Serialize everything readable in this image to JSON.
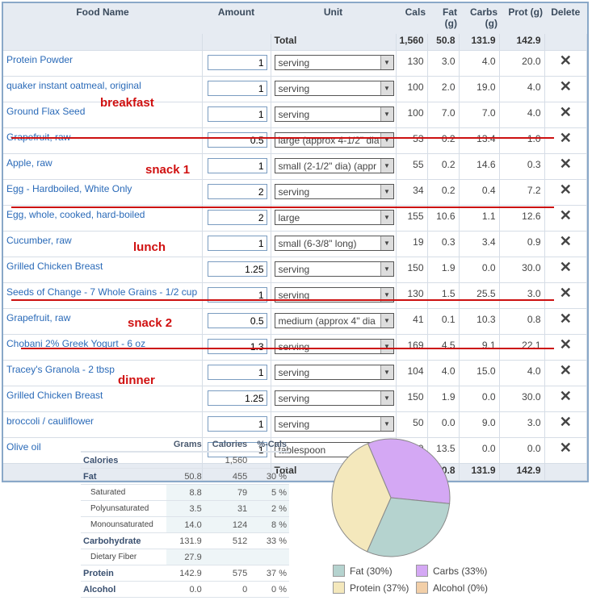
{
  "columns": [
    "Food Name",
    "Amount",
    "Unit",
    "Cals",
    "Fat (g)",
    "Carbs (g)",
    "Prot (g)",
    "Delete"
  ],
  "total": {
    "label": "Total",
    "cals": "1,560",
    "fat": "50.8",
    "carbs": "131.9",
    "prot": "142.9"
  },
  "rows": [
    {
      "name": "Protein Powder",
      "amount": "1",
      "unit": "serving",
      "cals": "130",
      "fat": "3.0",
      "carbs": "4.0",
      "prot": "20.0"
    },
    {
      "name": "quaker instant oatmeal, original",
      "amount": "1",
      "unit": "serving",
      "cals": "100",
      "fat": "2.0",
      "carbs": "19.0",
      "prot": "4.0"
    },
    {
      "name": "Ground Flax Seed",
      "amount": "1",
      "unit": "serving",
      "cals": "100",
      "fat": "7.0",
      "carbs": "7.0",
      "prot": "4.0"
    },
    {
      "name": "Grapefruit, raw",
      "amount": "0.5",
      "unit": "large (approx 4-1/2\" dia",
      "cals": "53",
      "fat": "0.2",
      "carbs": "13.4",
      "prot": "1.0"
    },
    {
      "name": "Apple, raw",
      "amount": "1",
      "unit": "small (2-1/2\" dia) (appr",
      "cals": "55",
      "fat": "0.2",
      "carbs": "14.6",
      "prot": "0.3"
    },
    {
      "name": "Egg - Hardboiled, White Only",
      "amount": "2",
      "unit": "serving",
      "cals": "34",
      "fat": "0.2",
      "carbs": "0.4",
      "prot": "7.2"
    },
    {
      "name": "Egg, whole, cooked, hard-boiled",
      "amount": "2",
      "unit": "large",
      "cals": "155",
      "fat": "10.6",
      "carbs": "1.1",
      "prot": "12.6"
    },
    {
      "name": "Cucumber, raw",
      "amount": "1",
      "unit": "small (6-3/8\" long)",
      "cals": "19",
      "fat": "0.3",
      "carbs": "3.4",
      "prot": "0.9"
    },
    {
      "name": "Grilled Chicken Breast",
      "amount": "1.25",
      "unit": "serving",
      "cals": "150",
      "fat": "1.9",
      "carbs": "0.0",
      "prot": "30.0"
    },
    {
      "name": "Seeds of Change - 7 Whole Grains - 1/2 cup",
      "amount": "1",
      "unit": "serving",
      "cals": "130",
      "fat": "1.5",
      "carbs": "25.5",
      "prot": "3.0"
    },
    {
      "name": "Grapefruit, raw",
      "amount": "0.5",
      "unit": "medium (approx 4\" dia",
      "cals": "41",
      "fat": "0.1",
      "carbs": "10.3",
      "prot": "0.8"
    },
    {
      "name": "Chobani 2% Greek Yogurt - 6 oz",
      "amount": "1.3",
      "unit": "serving",
      "cals": "169",
      "fat": "4.5",
      "carbs": "9.1",
      "prot": "22.1"
    },
    {
      "name": "Tracey's Granola - 2 tbsp",
      "amount": "1",
      "unit": "serving",
      "cals": "104",
      "fat": "4.0",
      "carbs": "15.0",
      "prot": "4.0"
    },
    {
      "name": "Grilled Chicken Breast",
      "amount": "1.25",
      "unit": "serving",
      "cals": "150",
      "fat": "1.9",
      "carbs": "0.0",
      "prot": "30.0"
    },
    {
      "name": "broccoli / cauliflower",
      "amount": "1",
      "unit": "serving",
      "cals": "50",
      "fat": "0.0",
      "carbs": "9.0",
      "prot": "3.0"
    },
    {
      "name": "Olive oil",
      "amount": "1",
      "unit": "tablespoon",
      "cals": "119",
      "fat": "13.5",
      "carbs": "0.0",
      "prot": "0.0"
    }
  ],
  "annotations": [
    "breakfast",
    "snack 1",
    "lunch",
    "snack 2",
    "dinner"
  ],
  "summary": {
    "headers": [
      "Grams",
      "Calories",
      "%-Cals"
    ],
    "rows": [
      {
        "label": "Calories",
        "grams": "",
        "cal": "1,560",
        "pct": "",
        "sub": false
      },
      {
        "label": "Fat",
        "grams": "50.8",
        "cal": "455",
        "pct": "30 %",
        "sub": false
      },
      {
        "label": "Saturated",
        "grams": "8.8",
        "cal": "79",
        "pct": "5 %",
        "sub": true
      },
      {
        "label": "Polyunsaturated",
        "grams": "3.5",
        "cal": "31",
        "pct": "2 %",
        "sub": true
      },
      {
        "label": "Monounsaturated",
        "grams": "14.0",
        "cal": "124",
        "pct": "8 %",
        "sub": true
      },
      {
        "label": "Carbohydrate",
        "grams": "131.9",
        "cal": "512",
        "pct": "33 %",
        "sub": false
      },
      {
        "label": "Dietary Fiber",
        "grams": "27.9",
        "cal": "",
        "pct": "",
        "sub": true
      },
      {
        "label": "Protein",
        "grams": "142.9",
        "cal": "575",
        "pct": "37 %",
        "sub": false
      },
      {
        "label": "Alcohol",
        "grams": "0.0",
        "cal": "0",
        "pct": "0 %",
        "sub": false
      }
    ]
  },
  "chart_data": {
    "type": "pie",
    "slices": [
      {
        "name": "Carbs",
        "value": 33,
        "color": "#d4a8f4",
        "legend": "Carbs (33%)"
      },
      {
        "name": "Fat",
        "value": 30,
        "color": "#b5d3cf",
        "legend": "Fat (30%)"
      },
      {
        "name": "Protein",
        "value": 37,
        "color": "#f4e8bc",
        "legend": "Protein (37%)"
      },
      {
        "name": "Alcohol",
        "value": 0,
        "color": "#f2cfa8",
        "legend": "Alcohol (0%)"
      }
    ]
  }
}
